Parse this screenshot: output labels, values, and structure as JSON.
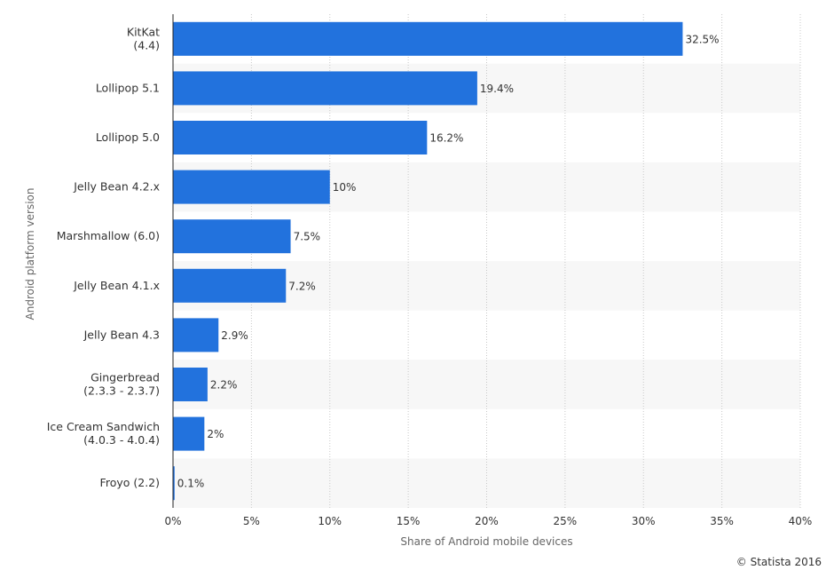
{
  "chart_data": {
    "type": "bar",
    "orientation": "horizontal",
    "categories": [
      "KitKat\n(4.4)",
      "Lollipop 5.1",
      "Lollipop 5.0",
      "Jelly Bean 4.2.x",
      "Marshmallow (6.0)",
      "Jelly Bean 4.1.x",
      "Jelly Bean 4.3",
      "Gingerbread\n(2.3.3 - 2.3.7)",
      "Ice Cream Sandwich\n(4.0.3 - 4.0.4)",
      "Froyo (2.2)"
    ],
    "values": [
      32.5,
      19.4,
      16.2,
      10,
      7.5,
      7.2,
      2.9,
      2.2,
      2,
      0.1
    ],
    "value_labels": [
      "32.5%",
      "19.4%",
      "16.2%",
      "10%",
      "7.5%",
      "7.2%",
      "2.9%",
      "2.2%",
      "2%",
      "0.1%"
    ],
    "xlabel": "Share of Android mobile devices",
    "ylabel": "Android platform version",
    "xlim": [
      0,
      40
    ],
    "x_ticks": [
      0,
      5,
      10,
      15,
      20,
      25,
      30,
      35,
      40
    ],
    "x_tick_labels": [
      "0%",
      "5%",
      "10%",
      "15%",
      "20%",
      "25%",
      "30%",
      "35%",
      "40%"
    ],
    "grid": true,
    "legend": "none",
    "bar_color": "#2272dd",
    "band_color": "#f7f7f7"
  },
  "copyright": "© Statista 2016"
}
